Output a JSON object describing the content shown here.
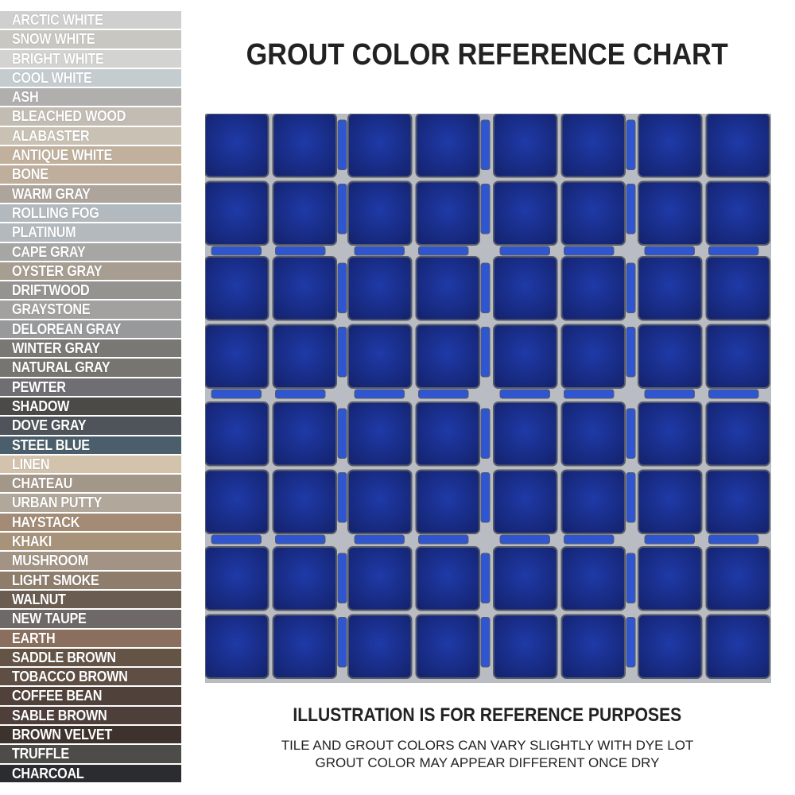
{
  "title": "GROUT COLOR REFERENCE CHART",
  "swatches": [
    {
      "name": "ARCTIC WHITE",
      "color": "#cfcfcf"
    },
    {
      "name": "SNOW WHITE",
      "color": "#c9c7c2"
    },
    {
      "name": "BRIGHT WHITE",
      "color": "#d3d3d2"
    },
    {
      "name": "COOL WHITE",
      "color": "#c5ccd0"
    },
    {
      "name": "ASH",
      "color": "#b0afae"
    },
    {
      "name": "BLEACHED WOOD",
      "color": "#c3bcb3"
    },
    {
      "name": "ALABASTER",
      "color": "#c9c1b4"
    },
    {
      "name": "ANTIQUE WHITE",
      "color": "#c1b19c"
    },
    {
      "name": "BONE",
      "color": "#bfae9c"
    },
    {
      "name": "WARM GRAY",
      "color": "#ada59c"
    },
    {
      "name": "ROLLING FOG",
      "color": "#b3babf"
    },
    {
      "name": "PLATINUM",
      "color": "#b4b9bd"
    },
    {
      "name": "CAPE GRAY",
      "color": "#a6a6a4"
    },
    {
      "name": "OYSTER GRAY",
      "color": "#a79e91"
    },
    {
      "name": "DRIFTWOOD",
      "color": "#959390"
    },
    {
      "name": "GRAYSTONE",
      "color": "#a3a1a0"
    },
    {
      "name": "DELOREAN GRAY",
      "color": "#97999b"
    },
    {
      "name": "WINTER GRAY",
      "color": "#7a7874"
    },
    {
      "name": "NATURAL GRAY",
      "color": "#76756f"
    },
    {
      "name": "PEWTER",
      "color": "#6f6f73"
    },
    {
      "name": "SHADOW",
      "color": "#4b4a47"
    },
    {
      "name": "DOVE GRAY",
      "color": "#4f545a"
    },
    {
      "name": "STEEL BLUE",
      "color": "#4a5e6b"
    },
    {
      "name": "LINEN",
      "color": "#d3c3ad"
    },
    {
      "name": "CHATEAU",
      "color": "#a3978a"
    },
    {
      "name": "URBAN PUTTY",
      "color": "#b1a79a"
    },
    {
      "name": "HAYSTACK",
      "color": "#a48b75"
    },
    {
      "name": "KHAKI",
      "color": "#a79379"
    },
    {
      "name": "MUSHROOM",
      "color": "#a29385"
    },
    {
      "name": "LIGHT SMOKE",
      "color": "#8f7d6c"
    },
    {
      "name": "WALNUT",
      "color": "#6a5c50"
    },
    {
      "name": "NEW TAUPE",
      "color": "#6e6866"
    },
    {
      "name": "EARTH",
      "color": "#8b6f5e"
    },
    {
      "name": "SADDLE BROWN",
      "color": "#645445"
    },
    {
      "name": "TOBACCO BROWN",
      "color": "#5f4e43"
    },
    {
      "name": "COFFEE BEAN",
      "color": "#50423a"
    },
    {
      "name": "SABLE BROWN",
      "color": "#4f3f3b"
    },
    {
      "name": "BROWN VELVET",
      "color": "#3e322d"
    },
    {
      "name": "TRUFFLE",
      "color": "#4e4c49"
    },
    {
      "name": "CHARCOAL",
      "color": "#2b2c30"
    }
  ],
  "mosaic": {
    "tile_color": "#1f3aa8",
    "tile_dark": "#14236e",
    "grout_color": "#b9bcc2"
  },
  "footer": {
    "heading": "ILLUSTRATION IS FOR REFERENCE PURPOSES",
    "line1": "TILE AND GROUT COLORS CAN VARY SLIGHTLY WITH DYE LOT",
    "line2": "GROUT COLOR MAY APPEAR DIFFERENT ONCE DRY"
  }
}
